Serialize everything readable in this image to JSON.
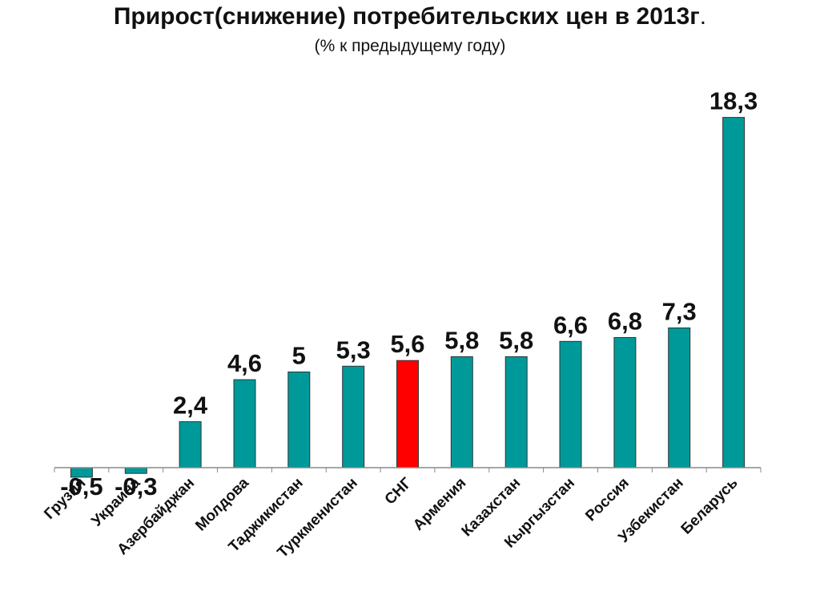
{
  "header": {
    "title": "Прирост(снижение) потребительских цен в 2013г",
    "title_dot": ".",
    "subtitle": "(% к предыдущему году)"
  },
  "chart_data": {
    "type": "bar",
    "title": "Прирост(снижение) потребительских цен в 2013г.",
    "subtitle": "(% к предыдущему году)",
    "categories": [
      "Грузия",
      "Украина",
      "Азербайджан",
      "Молдова",
      "Таджикистан",
      "Туркменистан",
      "СНГ",
      "Армения",
      "Казахстан",
      "Кыргызстан",
      "Россия",
      "Узбекистан",
      "Беларусь"
    ],
    "values": [
      -0.5,
      -0.3,
      2.4,
      4.6,
      5.0,
      5.3,
      5.6,
      5.8,
      5.8,
      6.6,
      6.8,
      7.3,
      18.3
    ],
    "value_labels": [
      "-0,5",
      "-0,3",
      "2,4",
      "4,6",
      "5",
      "5,3",
      "5,6",
      "5,8",
      "5,8",
      "6,6",
      "6,8",
      "7,3",
      "18,3"
    ],
    "highlight_category": "СНГ",
    "colors": {
      "bar": "#009999",
      "highlight": "#ff0000",
      "axis": "#888888"
    },
    "xlabel": "",
    "ylabel": "",
    "ylim": [
      -0.5,
      18.3
    ],
    "grid": false,
    "legend": "none"
  }
}
